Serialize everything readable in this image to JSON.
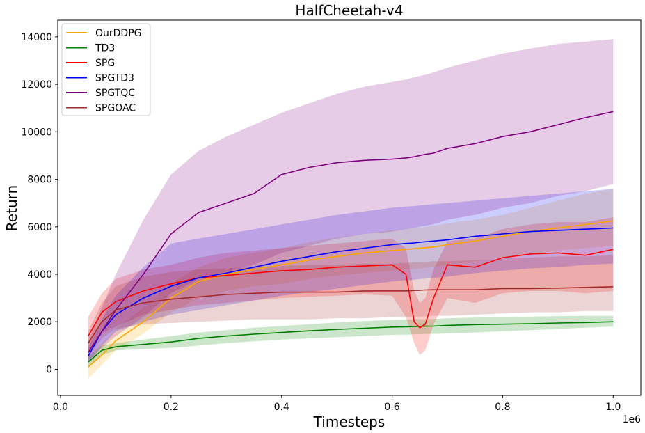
{
  "chart_data": {
    "type": "line",
    "title": "HalfCheetah-v4",
    "xlabel": "Timesteps",
    "ylabel": "Return",
    "x_offset_label": "1e6",
    "xlim": [
      -0.005,
      1.05
    ],
    "ylim": [
      -1100,
      14700
    ],
    "x_ticks": [
      0.0,
      0.2,
      0.4,
      0.6,
      0.8,
      1.0
    ],
    "x_tick_labels": [
      "0.0",
      "0.2",
      "0.4",
      "0.6",
      "0.8",
      "1.0"
    ],
    "y_ticks": [
      0,
      2000,
      4000,
      6000,
      8000,
      10000,
      12000,
      14000
    ],
    "y_tick_labels": [
      "0",
      "2000",
      "4000",
      "6000",
      "8000",
      "10000",
      "12000",
      "14000"
    ],
    "grid": false,
    "legend_position": "top-left",
    "x": [
      0.05,
      0.075,
      0.1,
      0.15,
      0.2,
      0.25,
      0.3,
      0.35,
      0.4,
      0.45,
      0.5,
      0.55,
      0.6,
      0.625,
      0.64,
      0.65,
      0.66,
      0.675,
      0.7,
      0.75,
      0.8,
      0.85,
      0.9,
      0.95,
      1.0
    ],
    "series": [
      {
        "name": "OurDDPG",
        "color": "#ffa500",
        "values": [
          100,
          600,
          1200,
          2000,
          3000,
          3700,
          4000,
          4200,
          4400,
          4600,
          4750,
          4900,
          5000,
          5050,
          5080,
          5100,
          5120,
          5150,
          5250,
          5400,
          5600,
          5800,
          5950,
          6100,
          6250
        ],
        "lower": [
          -400,
          200,
          800,
          1500,
          2400,
          3000,
          3300,
          3500,
          3600,
          3800,
          3950,
          4050,
          4150,
          4200,
          4220,
          4250,
          4270,
          4300,
          4400,
          4550,
          4700,
          4850,
          5000,
          5100,
          5200
        ],
        "upper": [
          600,
          1100,
          1700,
          2600,
          3600,
          4300,
          4700,
          4900,
          5100,
          5350,
          5550,
          5700,
          5850,
          5900,
          5950,
          5970,
          6000,
          6050,
          6150,
          6300,
          6500,
          6800,
          7100,
          7400,
          7600
        ]
      },
      {
        "name": "TD3",
        "color": "#008000",
        "values": [
          300,
          800,
          950,
          1050,
          1150,
          1300,
          1400,
          1480,
          1550,
          1620,
          1680,
          1730,
          1780,
          1790,
          1800,
          1810,
          1815,
          1820,
          1850,
          1880,
          1900,
          1920,
          1950,
          1970,
          2000
        ],
        "lower": [
          100,
          600,
          800,
          850,
          900,
          1000,
          1100,
          1180,
          1250,
          1300,
          1350,
          1400,
          1450,
          1460,
          1470,
          1480,
          1485,
          1490,
          1510,
          1550,
          1600,
          1650,
          1700,
          1750,
          1800
        ],
        "upper": [
          500,
          1000,
          1100,
          1250,
          1400,
          1550,
          1650,
          1750,
          1820,
          1900,
          1970,
          2030,
          2080,
          2090,
          2100,
          2110,
          2115,
          2120,
          2150,
          2180,
          2200,
          2220,
          2240,
          2250,
          2250
        ]
      },
      {
        "name": "SPG",
        "color": "#ff0000",
        "values": [
          1400,
          2400,
          2850,
          3300,
          3600,
          3850,
          3950,
          4050,
          4150,
          4200,
          4300,
          4350,
          4400,
          4000,
          2000,
          1750,
          1900,
          3000,
          4400,
          4300,
          4700,
          4850,
          4900,
          4800,
          5050
        ],
        "lower": [
          700,
          1500,
          1800,
          2300,
          2500,
          2700,
          2800,
          2900,
          3000,
          3050,
          3100,
          3150,
          3100,
          2200,
          1100,
          600,
          800,
          1900,
          3000,
          2800,
          3200,
          3300,
          3300,
          3200,
          3300
        ],
        "upper": [
          2200,
          3200,
          3800,
          4200,
          4400,
          4700,
          4900,
          5000,
          5100,
          5200,
          5300,
          5400,
          5500,
          5100,
          3300,
          2800,
          3000,
          4200,
          5400,
          5500,
          5900,
          6100,
          6200,
          6200,
          6400
        ]
      },
      {
        "name": "SPGTD3",
        "color": "#0000ff",
        "values": [
          550,
          1600,
          2300,
          3000,
          3500,
          3850,
          4050,
          4300,
          4550,
          4750,
          4950,
          5100,
          5250,
          5300,
          5320,
          5350,
          5370,
          5400,
          5450,
          5600,
          5700,
          5800,
          5850,
          5900,
          5950
        ],
        "lower": [
          300,
          1000,
          1600,
          2000,
          2300,
          2500,
          2700,
          2900,
          3100,
          3250,
          3400,
          3550,
          3700,
          3750,
          3770,
          3800,
          3820,
          3850,
          3900,
          4050,
          4150,
          4250,
          4300,
          4400,
          4450
        ],
        "upper": [
          900,
          2100,
          3100,
          4300,
          5300,
          5500,
          5700,
          5900,
          6100,
          6300,
          6500,
          6650,
          6800,
          6850,
          6870,
          6900,
          6920,
          6950,
          7000,
          7100,
          7200,
          7300,
          7400,
          7500,
          7600
        ]
      },
      {
        "name": "SPGTQC",
        "color": "#800080",
        "values": [
          700,
          1600,
          2500,
          4000,
          5700,
          6600,
          7000,
          7400,
          8200,
          8500,
          8700,
          8800,
          8850,
          8900,
          8950,
          9000,
          9050,
          9100,
          9300,
          9500,
          9800,
          10000,
          10300,
          10600,
          10850
        ],
        "lower": [
          300,
          900,
          1400,
          2200,
          3200,
          3800,
          4100,
          4400,
          4900,
          5200,
          5500,
          5700,
          5800,
          5900,
          5950,
          6000,
          6050,
          6100,
          6300,
          6500,
          6800,
          7000,
          7300,
          7500,
          7800
        ],
        "upper": [
          1200,
          2600,
          4000,
          6300,
          8200,
          9200,
          9800,
          10300,
          10800,
          11200,
          11600,
          11900,
          12100,
          12200,
          12300,
          12350,
          12400,
          12500,
          12700,
          13000,
          13300,
          13500,
          13700,
          13800,
          13900
        ]
      },
      {
        "name": "SPGOAC",
        "color": "#a52a2a",
        "values": [
          1100,
          2000,
          2500,
          2800,
          2950,
          3050,
          3150,
          3200,
          3250,
          3250,
          3250,
          3300,
          3300,
          3300,
          3320,
          3330,
          3340,
          3350,
          3350,
          3350,
          3400,
          3400,
          3420,
          3450,
          3480
        ],
        "lower": [
          500,
          1300,
          1700,
          1900,
          1950,
          2000,
          2050,
          2100,
          2100,
          2100,
          2150,
          2150,
          2200,
          2200,
          2210,
          2220,
          2230,
          2250,
          2250,
          2300,
          2350,
          2400,
          2400,
          2450,
          2450
        ],
        "upper": [
          1600,
          2800,
          3500,
          3900,
          4100,
          4200,
          4250,
          4300,
          4350,
          4400,
          4400,
          4450,
          4450,
          4480,
          4500,
          4510,
          4520,
          4550,
          4550,
          4600,
          4650,
          4700,
          4750,
          4750,
          4800
        ]
      }
    ]
  }
}
